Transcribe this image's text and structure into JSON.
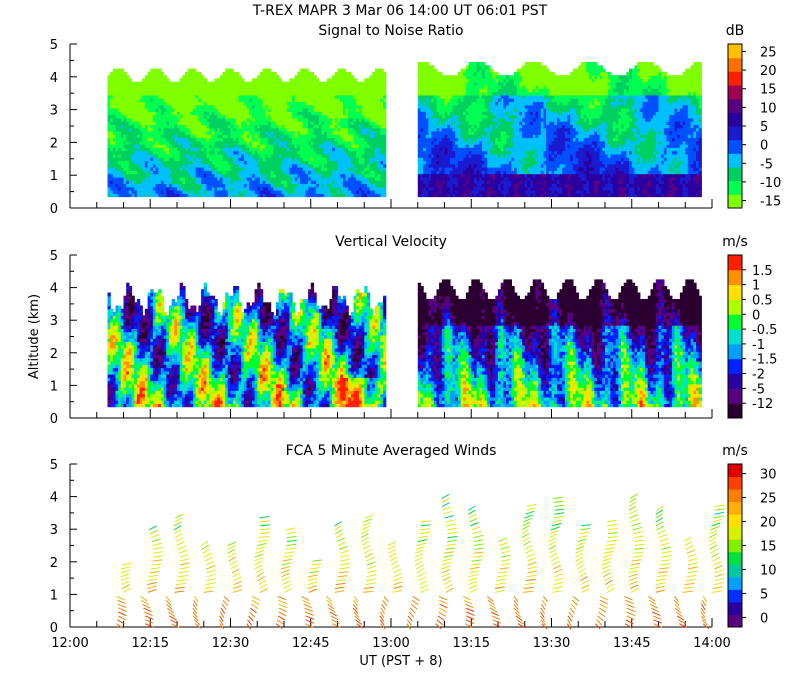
{
  "figure": {
    "title": "T-REX   MAPR   3 Mar 06   14:00 UT   06:01   PST",
    "x_axis_label": "UT  (PST + 8)",
    "y_axis_label": "Altitude (km)",
    "x_tick_labels": [
      "12:00",
      "12:15",
      "12:30",
      "12:45",
      "13:00",
      "13:15",
      "13:30",
      "13:45",
      "14:00"
    ],
    "y_tick_labels": [
      "0",
      "1",
      "2",
      "3",
      "4",
      "5"
    ]
  },
  "chart_data": [
    {
      "type": "heatmap",
      "title": "Signal to Noise Ratio",
      "xlabel": "",
      "ylabel": "",
      "xlim_minutes": [
        0,
        120
      ],
      "ylim_km": [
        0,
        5
      ],
      "data_gap_minutes": [
        59,
        65
      ],
      "data_start_minutes": 7,
      "data_end_minutes": 118,
      "colorbar": {
        "unit": "dB",
        "tick_labels": [
          "25",
          "20",
          "15",
          "10",
          "5",
          "0",
          "-5",
          "-10",
          "-15"
        ],
        "tick_values": [
          25,
          20,
          15,
          10,
          5,
          0,
          -5,
          -10,
          -15
        ],
        "range": [
          -17,
          27
        ],
        "colors": [
          "#7fff00",
          "#00ff50",
          "#00d060",
          "#00c0ff",
          "#0050ff",
          "#1a1ad0",
          "#2b00a0",
          "#5a0082",
          "#a00050",
          "#ff2000",
          "#ff7000",
          "#ffc000"
        ]
      }
    },
    {
      "type": "heatmap",
      "title": "Vertical Velocity",
      "xlabel": "",
      "ylabel": "Altitude (km)",
      "xlim_minutes": [
        0,
        120
      ],
      "ylim_km": [
        0,
        5
      ],
      "data_gap_minutes": [
        59,
        65
      ],
      "data_start_minutes": 7,
      "data_end_minutes": 118,
      "colorbar": {
        "unit": "m/s",
        "tick_labels": [
          "1.5",
          "1",
          "0.5",
          "0",
          "-0.5",
          "-1",
          "-1.5",
          "-2",
          "-5",
          "-12"
        ],
        "tick_values": [
          1.5,
          1,
          0.5,
          0,
          -0.5,
          -1,
          -1.5,
          -2,
          -5,
          -12
        ],
        "colors": [
          "#2b0030",
          "#5a0082",
          "#2b00a0",
          "#0020ff",
          "#00a0ff",
          "#00e0d0",
          "#00ff30",
          "#b0ff00",
          "#ffe000",
          "#ff9000",
          "#ff2000"
        ]
      }
    },
    {
      "type": "scatter",
      "title": "FCA 5 Minute Averaged Winds",
      "xlabel": "UT  (PST + 8)",
      "ylabel": "",
      "xlim_minutes": [
        0,
        120
      ],
      "ylim_km": [
        0,
        5
      ],
      "profile_times_minutes": [
        10,
        15,
        20,
        25,
        30,
        35,
        40,
        45,
        50,
        55,
        60,
        65,
        70,
        75,
        80,
        85,
        90,
        95,
        100,
        105,
        110,
        115,
        120
      ],
      "colorbar": {
        "unit": "m/s",
        "tick_labels": [
          "30",
          "25",
          "20",
          "15",
          "10",
          "5",
          "0"
        ],
        "tick_values": [
          30,
          25,
          20,
          15,
          10,
          5,
          0
        ],
        "range": [
          -2,
          32
        ],
        "colors": [
          "#5a0082",
          "#2b00a0",
          "#0030ff",
          "#00a0ff",
          "#00c8a0",
          "#00e040",
          "#80f000",
          "#d8f000",
          "#ffe000",
          "#ffb000",
          "#ff8000",
          "#ff4000",
          "#e00000"
        ]
      }
    }
  ]
}
